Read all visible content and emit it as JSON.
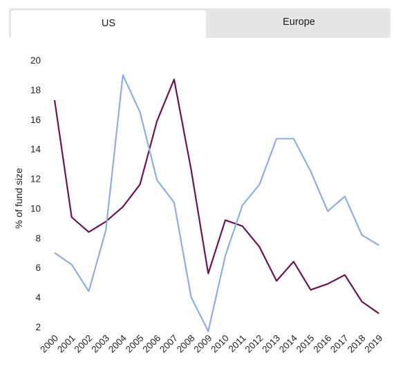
{
  "tabs": [
    {
      "label": "US",
      "active": true
    },
    {
      "label": "Europe",
      "active": false
    }
  ],
  "chart_data": {
    "type": "line",
    "title": "",
    "xlabel": "",
    "ylabel": "% of fund size",
    "ylim": [
      2,
      20
    ],
    "yticks": [
      2,
      4,
      6,
      8,
      10,
      12,
      14,
      16,
      18,
      20
    ],
    "grid": false,
    "categories": [
      "2000",
      "2001",
      "2002",
      "2003",
      "2004",
      "2005",
      "2006",
      "2007",
      "2008",
      "2009",
      "2010",
      "2011",
      "2012",
      "2013",
      "2014",
      "2015",
      "2016",
      "2017",
      "2018",
      "2019"
    ],
    "series": [
      {
        "color": "#6b1350",
        "values": [
          17.3,
          9.4,
          8.4,
          9.1,
          10.1,
          11.6,
          15.9,
          18.7,
          12.6,
          5.6,
          9.2,
          8.8,
          7.4,
          5.1,
          6.4,
          4.5,
          4.9,
          5.5,
          3.7,
          2.9
        ]
      },
      {
        "color": "#8fadde",
        "values": [
          7.0,
          6.2,
          4.4,
          8.5,
          19.0,
          16.5,
          11.9,
          10.4,
          4.0,
          1.7,
          6.8,
          10.2,
          11.6,
          14.7,
          14.7,
          12.5,
          9.8,
          10.8,
          8.2,
          7.5
        ]
      }
    ]
  }
}
